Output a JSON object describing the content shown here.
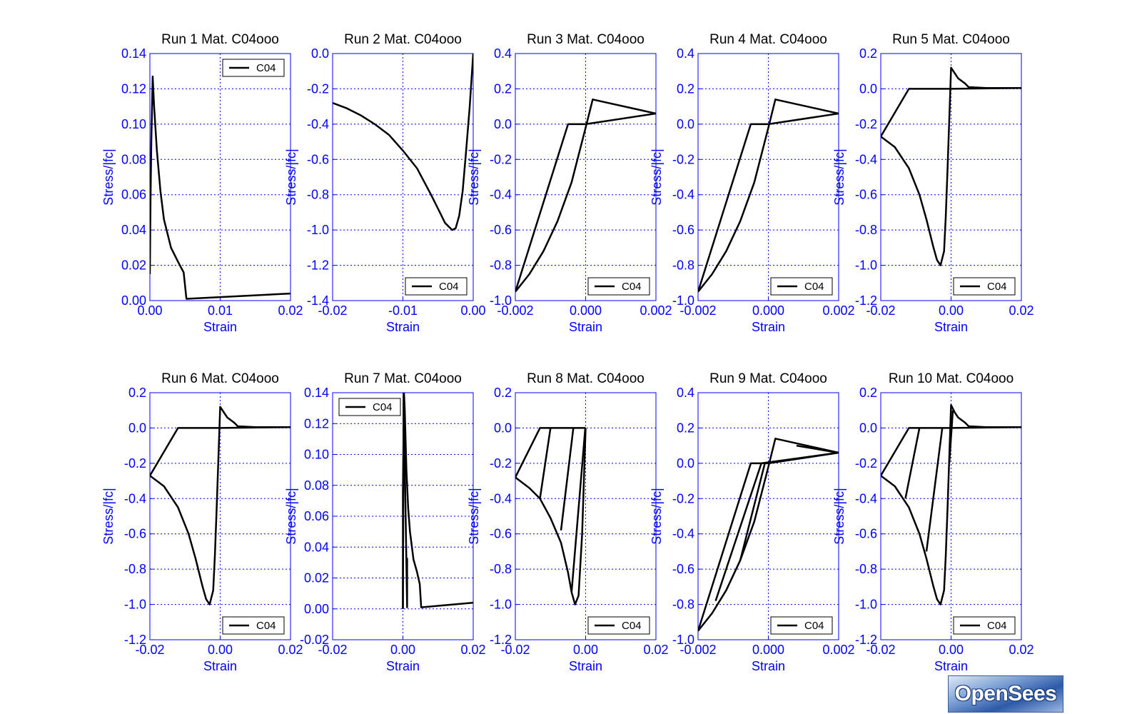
{
  "logo": {
    "text": "OpenSees"
  },
  "colors": {
    "axis": "#0000ff",
    "curve": "#000000",
    "title": "#000000"
  },
  "chart_data": [
    {
      "type": "line",
      "title": "Run 1   Mat. C04ooo",
      "xlabel": "Strain",
      "ylabel": "Stress/|fc|",
      "xlim": [
        0,
        0.02
      ],
      "ylim": [
        0,
        0.14
      ],
      "xticks": [
        "0.00",
        "0.01",
        "0.02"
      ],
      "yticks": [
        "0.00",
        "0.02",
        "0.04",
        "0.06",
        "0.08",
        "0.10",
        "0.12",
        "0.14"
      ],
      "legend": "C04",
      "legend_pos": "top-right",
      "series": [
        {
          "x": [
            0,
            5e-05,
            0.0001,
            0.0002,
            0.0004,
            0.0006,
            0.001,
            0.0015,
            0.002,
            0.003,
            0.004,
            0.0048,
            0.0052,
            0.01,
            0.02
          ],
          "y": [
            0.015,
            0.04,
            0.06,
            0.09,
            0.127,
            0.11,
            0.085,
            0.062,
            0.046,
            0.03,
            0.022,
            0.016,
            0.001,
            0.002,
            0.004
          ]
        }
      ]
    },
    {
      "type": "line",
      "title": "Run 2   Mat. C04ooo",
      "xlabel": "Strain",
      "ylabel": "Stress/|fc|",
      "xlim": [
        -0.02,
        0
      ],
      "ylim": [
        -1.4,
        0
      ],
      "xticks": [
        "-0.02",
        "-0.01",
        "0.00"
      ],
      "yticks": [
        "-1.4",
        "-1.2",
        "-1.0",
        "-0.8",
        "-0.6",
        "-0.4",
        "-0.2",
        "0.0"
      ],
      "legend": "C04",
      "legend_pos": "bottom-left",
      "series": [
        {
          "x": [
            -0.02,
            -0.018,
            -0.016,
            -0.014,
            -0.012,
            -0.01,
            -0.008,
            -0.006,
            -0.005,
            -0.004,
            -0.003,
            -0.0025,
            -0.002,
            -0.0015,
            -0.001,
            -0.0005,
            0
          ],
          "y": [
            -0.28,
            -0.31,
            -0.35,
            -0.4,
            -0.46,
            -0.55,
            -0.65,
            -0.8,
            -0.88,
            -0.96,
            -1.0,
            -0.99,
            -0.92,
            -0.78,
            -0.55,
            -0.3,
            0
          ]
        }
      ]
    },
    {
      "type": "line",
      "title": "Run 3   Mat. C04ooo",
      "xlabel": "Strain",
      "ylabel": "Stress/|fc|",
      "xlim": [
        -0.002,
        0.002
      ],
      "ylim": [
        -1.0,
        0.4
      ],
      "xticks": [
        "-0.002",
        "0.000",
        "0.002"
      ],
      "yticks": [
        "-1.0",
        "-0.8",
        "-0.6",
        "-0.4",
        "-0.2",
        "0.0",
        "0.2",
        "0.4"
      ],
      "legend": "C04",
      "legend_pos": "bottom-right",
      "series": [
        {
          "x": [
            -0.002,
            -0.0016,
            -0.0012,
            -0.0008,
            -0.0004,
            0,
            0.0002,
            0.002
          ],
          "y": [
            -0.95,
            -0.85,
            -0.72,
            -0.55,
            -0.33,
            -0.02,
            0.14,
            0.06
          ]
        },
        {
          "x": [
            -0.002,
            -0.0005,
            0,
            0.002
          ],
          "y": [
            -0.95,
            0,
            0,
            0.06
          ]
        }
      ]
    },
    {
      "type": "line",
      "title": "Run 4   Mat. C04ooo",
      "xlabel": "Strain",
      "ylabel": "Stress/|fc|",
      "xlim": [
        -0.002,
        0.002
      ],
      "ylim": [
        -1.0,
        0.4
      ],
      "xticks": [
        "-0.002",
        "0.000",
        "0.002"
      ],
      "yticks": [
        "-1.0",
        "-0.8",
        "-0.6",
        "-0.4",
        "-0.2",
        "0.0",
        "0.2",
        "0.4"
      ],
      "legend": "C04",
      "legend_pos": "bottom-right",
      "series": [
        {
          "x": [
            -0.002,
            -0.0016,
            -0.0012,
            -0.0008,
            -0.0004,
            0,
            0.0002,
            0.002
          ],
          "y": [
            -0.95,
            -0.85,
            -0.72,
            -0.55,
            -0.33,
            -0.02,
            0.14,
            0.06
          ]
        },
        {
          "x": [
            -0.002,
            -0.0005,
            0,
            0.002
          ],
          "y": [
            -0.95,
            0,
            0,
            0.06
          ]
        }
      ]
    },
    {
      "type": "line",
      "title": "Run 5   Mat. C04ooo",
      "xlabel": "Strain",
      "ylabel": "Stress/|fc|",
      "xlim": [
        -0.02,
        0.02
      ],
      "ylim": [
        -1.2,
        0.2
      ],
      "xticks": [
        "-0.02",
        "0.00",
        "0.02"
      ],
      "yticks": [
        "-1.2",
        "-1.0",
        "-0.8",
        "-0.6",
        "-0.4",
        "-0.2",
        "0.0",
        "0.2"
      ],
      "legend": "C04",
      "legend_pos": "bottom-right",
      "series": [
        {
          "x": [
            -0.02,
            -0.016,
            -0.012,
            -0.009,
            -0.007,
            -0.005,
            -0.004,
            -0.003,
            -0.002,
            -0.0015,
            -0.001,
            0,
            0.001,
            0.002,
            0.004,
            0.005,
            0.01,
            0.02
          ],
          "y": [
            -0.27,
            -0.33,
            -0.45,
            -0.6,
            -0.74,
            -0.9,
            -0.97,
            -1.0,
            -0.92,
            -0.72,
            -0.45,
            0.12,
            0.09,
            0.06,
            0.03,
            0.01,
            0.005,
            0.005
          ]
        },
        {
          "x": [
            -0.02,
            -0.012,
            0,
            0.02
          ],
          "y": [
            -0.27,
            0,
            0,
            0.005
          ]
        }
      ]
    },
    {
      "type": "line",
      "title": "Run 6   Mat. C04ooo",
      "xlabel": "Strain",
      "ylabel": "Stress/|fc|",
      "xlim": [
        -0.02,
        0.02
      ],
      "ylim": [
        -1.2,
        0.2
      ],
      "xticks": [
        "-0.02",
        "0.00",
        "0.02"
      ],
      "yticks": [
        "-1.2",
        "-1.0",
        "-0.8",
        "-0.6",
        "-0.4",
        "-0.2",
        "0.0",
        "0.2"
      ],
      "legend": "C04",
      "legend_pos": "bottom-right",
      "series": [
        {
          "x": [
            -0.02,
            -0.016,
            -0.012,
            -0.009,
            -0.007,
            -0.005,
            -0.004,
            -0.003,
            -0.002,
            -0.0015,
            -0.001,
            0,
            0.001,
            0.002,
            0.004,
            0.005,
            0.01,
            0.02
          ],
          "y": [
            -0.27,
            -0.33,
            -0.45,
            -0.6,
            -0.74,
            -0.9,
            -0.97,
            -1.0,
            -0.92,
            -0.72,
            -0.45,
            0.12,
            0.09,
            0.06,
            0.03,
            0.01,
            0.005,
            0.005
          ]
        },
        {
          "x": [
            -0.02,
            -0.012,
            0,
            0.02
          ],
          "y": [
            -0.27,
            0,
            0,
            0.005
          ]
        }
      ]
    },
    {
      "type": "line",
      "title": "Run 7   Mat. C04ooo",
      "xlabel": "Strain",
      "ylabel": "Stress/|fc|",
      "xlim": [
        -0.02,
        0.02
      ],
      "ylim": [
        -0.02,
        0.14
      ],
      "xticks": [
        "-0.02",
        "0.00",
        "0.02"
      ],
      "yticks": [
        "-0.02",
        "0.00",
        "0.02",
        "0.04",
        "0.06",
        "0.08",
        "0.10",
        "0.12",
        "0.14"
      ],
      "legend": "C04",
      "legend_pos": "top-left",
      "series": [
        {
          "x": [
            0,
            0,
            0.0003,
            0.0005,
            0.001,
            0.0015,
            0.002,
            0.003,
            0.004,
            0.0048,
            0.0052,
            0.02
          ],
          "y": [
            0,
            0.075,
            0.14,
            0.13,
            0.09,
            0.065,
            0.05,
            0.032,
            0.024,
            0.016,
            0.001,
            0.004
          ]
        },
        {
          "x": [
            0,
            0.0002,
            0.0012,
            0.0012
          ],
          "y": [
            0,
            0.14,
            0.001,
            0.033
          ]
        }
      ]
    },
    {
      "type": "line",
      "title": "Run 8   Mat. C04ooo",
      "xlabel": "Strain",
      "ylabel": "Stress/|fc|",
      "xlim": [
        -0.02,
        0.02
      ],
      "ylim": [
        -1.2,
        0.2
      ],
      "xticks": [
        "-0.02",
        "0.00",
        "0.02"
      ],
      "yticks": [
        "-1.2",
        "-1.0",
        "-0.8",
        "-0.6",
        "-0.4",
        "-0.2",
        "0.0",
        "0.2"
      ],
      "legend": "C04",
      "legend_pos": "bottom-right",
      "series": [
        {
          "x": [
            -0.02,
            -0.016,
            -0.013,
            -0.01,
            -0.007,
            -0.005,
            -0.004,
            -0.003,
            -0.002,
            -0.001,
            0,
            0
          ],
          "y": [
            -0.28,
            -0.34,
            -0.4,
            -0.51,
            -0.65,
            -0.82,
            -0.93,
            -1.0,
            -0.95,
            -0.6,
            0,
            0
          ]
        },
        {
          "x": [
            -0.02,
            -0.013,
            0
          ],
          "y": [
            -0.28,
            0,
            0
          ]
        },
        {
          "x": [
            -0.013,
            -0.01
          ],
          "y": [
            -0.4,
            0
          ]
        },
        {
          "x": [
            -0.007,
            -0.0035
          ],
          "y": [
            -0.58,
            0
          ]
        },
        {
          "x": [
            -0.004,
            -0.0001
          ],
          "y": [
            -0.93,
            0
          ]
        }
      ]
    },
    {
      "type": "line",
      "title": "Run 9   Mat. C04ooo",
      "xlabel": "Strain",
      "ylabel": "Stress/|fc|",
      "xlim": [
        -0.002,
        0.002
      ],
      "ylim": [
        -1.0,
        0.4
      ],
      "xticks": [
        "-0.002",
        "0.000",
        "0.002"
      ],
      "yticks": [
        "-1.0",
        "-0.8",
        "-0.6",
        "-0.4",
        "-0.2",
        "0.0",
        "0.2",
        "0.4"
      ],
      "legend": "C04",
      "legend_pos": "bottom-right",
      "series": [
        {
          "x": [
            -0.002,
            -0.0016,
            -0.0012,
            -0.0008,
            -0.0004,
            0,
            0.0002,
            0.002
          ],
          "y": [
            -0.95,
            -0.85,
            -0.72,
            -0.55,
            -0.33,
            -0.02,
            0.14,
            0.06
          ]
        },
        {
          "x": [
            -0.002,
            -0.0005,
            0,
            0.002
          ],
          "y": [
            -0.95,
            0,
            0,
            0.06
          ]
        },
        {
          "x": [
            -0.0015,
            -0.0002,
            0.002,
            0.0008
          ],
          "y": [
            -0.78,
            0,
            0.06,
            0.1
          ]
        },
        {
          "x": [
            -0.0008,
            -0.0001,
            0.002,
            0.0014
          ],
          "y": [
            -0.55,
            0,
            0.06,
            0.08
          ]
        }
      ]
    },
    {
      "type": "line",
      "title": "Run 10   Mat. C04ooo",
      "xlabel": "Strain",
      "ylabel": "Stress/|fc|",
      "xlim": [
        -0.02,
        0.02
      ],
      "ylim": [
        -1.2,
        0.2
      ],
      "xticks": [
        "-0.02",
        "0.00",
        "0.02"
      ],
      "yticks": [
        "-1.2",
        "-1.0",
        "-0.8",
        "-0.6",
        "-0.4",
        "-0.2",
        "0.0",
        "0.2"
      ],
      "legend": "C04",
      "legend_pos": "bottom-right",
      "series": [
        {
          "x": [
            -0.02,
            -0.016,
            -0.012,
            -0.009,
            -0.007,
            -0.005,
            -0.004,
            -0.003,
            -0.002,
            -0.0015,
            -0.001,
            0,
            0.001,
            0.002,
            0.004,
            0.005,
            0.01,
            0.02
          ],
          "y": [
            -0.27,
            -0.33,
            -0.45,
            -0.6,
            -0.74,
            -0.9,
            -0.97,
            -1.0,
            -0.92,
            -0.72,
            -0.45,
            0.13,
            0.09,
            0.06,
            0.03,
            0.01,
            0.005,
            0.005
          ]
        },
        {
          "x": [
            -0.02,
            -0.012,
            0,
            0.02
          ],
          "y": [
            -0.27,
            0,
            0,
            0.005
          ]
        },
        {
          "x": [
            -0.013,
            -0.009
          ],
          "y": [
            -0.4,
            0
          ]
        },
        {
          "x": [
            -0.007,
            -0.0025
          ],
          "y": [
            -0.7,
            0
          ]
        },
        {
          "x": [
            -0.0005,
            0.0005
          ],
          "y": [
            -0.2,
            0.1
          ]
        }
      ]
    }
  ]
}
